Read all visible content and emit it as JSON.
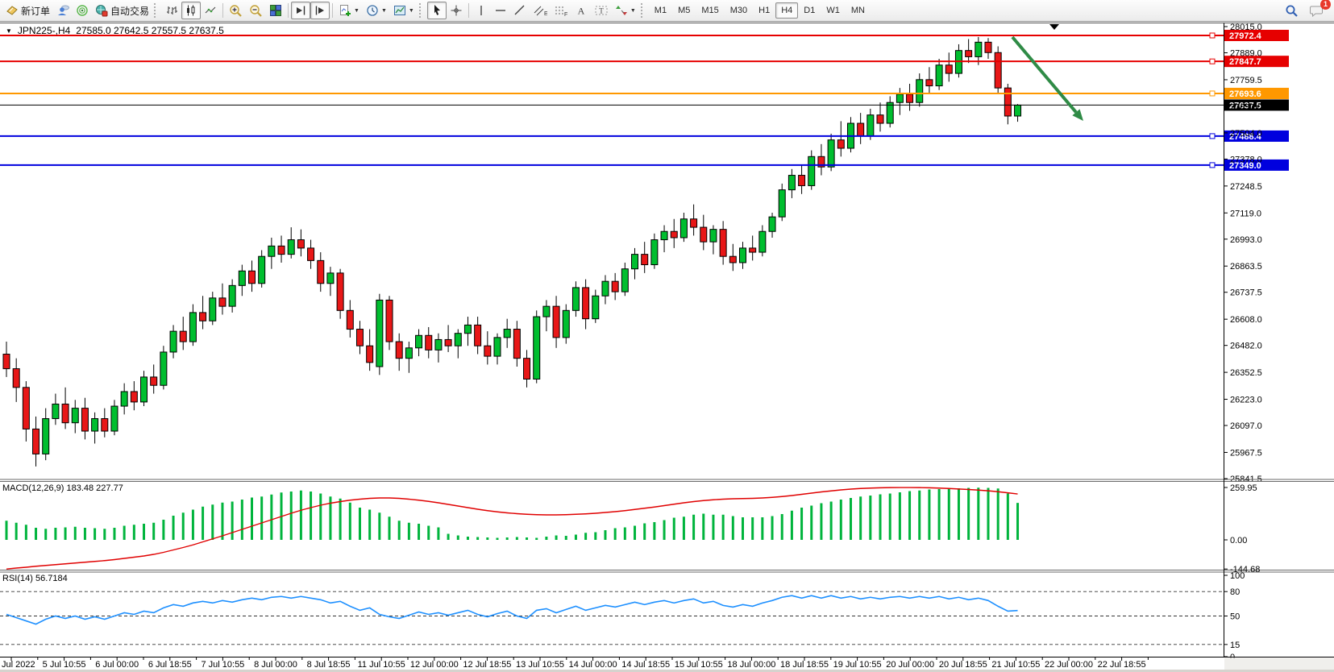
{
  "toolbar": {
    "new_order_label": "新订单",
    "autotrade_label": "自动交易",
    "timeframes": [
      "M1",
      "M5",
      "M15",
      "M30",
      "H1",
      "H4",
      "D1",
      "W1",
      "MN"
    ],
    "active_timeframe": "H4",
    "notification_badge": "1"
  },
  "chart_header": {
    "symbol": "JPN225-,H4",
    "ohlc": "27585.0 27642.5 27557.5 27637.5"
  },
  "indicators": {
    "macd_label": "MACD(12,26,9) 183.48 227.77",
    "rsi_label": "RSI(14) 56.7184"
  },
  "colors": {
    "candle_up": "#00be2f",
    "candle_down": "#e81717",
    "macd_hist": "#00b43c",
    "macd_signal": "#e00000",
    "rsi_line": "#1e90ff",
    "hline_red": "#e60000",
    "hline_orange": "#ff9800",
    "hline_blue": "#0000de",
    "hline_black": "#000000",
    "arrow_green": "#2f8b46"
  },
  "chart_data": {
    "type": "candlestick",
    "symbol": "JPN225-",
    "timeframe": "H4",
    "ylim_main": [
      25841.5,
      28015.0
    ],
    "price_ticks": [
      "28015.0",
      "27889.0",
      "27759.5",
      "27630.0",
      "27504.0",
      "27378.0",
      "27248.5",
      "27119.0",
      "26993.0",
      "26863.5",
      "26737.5",
      "26608.0",
      "26482.0",
      "26352.5",
      "26223.0",
      "26097.0",
      "25967.5",
      "25841.5"
    ],
    "hlines": [
      {
        "value": 27972.4,
        "label": "27972.4",
        "color": "#e60000",
        "kind": "resistance"
      },
      {
        "value": 27847.7,
        "label": "27847.7",
        "color": "#e60000",
        "kind": "resistance"
      },
      {
        "value": 27693.6,
        "label": "27693.6",
        "color": "#ff9800",
        "kind": "level"
      },
      {
        "value": 27637.5,
        "label": "27637.5",
        "color": "#000000",
        "kind": "current"
      },
      {
        "value": 27488.4,
        "label": "27488.4",
        "color": "#0000de",
        "kind": "support"
      },
      {
        "value": 27349.0,
        "label": "27349.0",
        "color": "#0000de",
        "kind": "support"
      }
    ],
    "candles": [
      [
        26440,
        26500,
        26330,
        26370
      ],
      [
        26370,
        26420,
        26210,
        26280
      ],
      [
        26280,
        26310,
        26020,
        26080
      ],
      [
        26080,
        26140,
        25900,
        25960
      ],
      [
        25960,
        26180,
        25930,
        26130
      ],
      [
        26130,
        26250,
        26100,
        26200
      ],
      [
        26200,
        26280,
        26080,
        26110
      ],
      [
        26110,
        26220,
        26060,
        26180
      ],
      [
        26180,
        26230,
        26030,
        26070
      ],
      [
        26070,
        26160,
        26010,
        26130
      ],
      [
        26130,
        26180,
        26040,
        26070
      ],
      [
        26070,
        26220,
        26050,
        26190
      ],
      [
        26190,
        26300,
        26150,
        26260
      ],
      [
        26260,
        26310,
        26170,
        26210
      ],
      [
        26210,
        26360,
        26190,
        26330
      ],
      [
        26330,
        26390,
        26250,
        26290
      ],
      [
        26290,
        26480,
        26270,
        26450
      ],
      [
        26450,
        26580,
        26420,
        26550
      ],
      [
        26550,
        26620,
        26460,
        26500
      ],
      [
        26500,
        26680,
        26480,
        26640
      ],
      [
        26640,
        26720,
        26560,
        26600
      ],
      [
        26600,
        26740,
        26580,
        26710
      ],
      [
        26710,
        26780,
        26630,
        26670
      ],
      [
        26670,
        26800,
        26640,
        26770
      ],
      [
        26770,
        26870,
        26720,
        26840
      ],
      [
        26840,
        26890,
        26740,
        26780
      ],
      [
        26780,
        26940,
        26760,
        26910
      ],
      [
        26910,
        27000,
        26850,
        26960
      ],
      [
        26960,
        27010,
        26880,
        26920
      ],
      [
        26920,
        27050,
        26900,
        26990
      ],
      [
        26990,
        27040,
        26910,
        26950
      ],
      [
        26950,
        26990,
        26850,
        26890
      ],
      [
        26890,
        26930,
        26740,
        26780
      ],
      [
        26780,
        26860,
        26720,
        26830
      ],
      [
        26830,
        26850,
        26610,
        26650
      ],
      [
        26650,
        26700,
        26520,
        26560
      ],
      [
        26560,
        26600,
        26440,
        26480
      ],
      [
        26480,
        26560,
        26360,
        26400
      ],
      [
        26380,
        26730,
        26340,
        26700
      ],
      [
        26700,
        26720,
        26460,
        26500
      ],
      [
        26500,
        26540,
        26360,
        26420
      ],
      [
        26420,
        26500,
        26350,
        26470
      ],
      [
        26470,
        26560,
        26430,
        26530
      ],
      [
        26530,
        26570,
        26420,
        26460
      ],
      [
        26460,
        26540,
        26400,
        26510
      ],
      [
        26510,
        26580,
        26450,
        26480
      ],
      [
        26480,
        26560,
        26420,
        26540
      ],
      [
        26540,
        26620,
        26480,
        26580
      ],
      [
        26580,
        26620,
        26440,
        26480
      ],
      [
        26480,
        26550,
        26390,
        26430
      ],
      [
        26430,
        26540,
        26390,
        26520
      ],
      [
        26520,
        26610,
        26470,
        26560
      ],
      [
        26560,
        26600,
        26380,
        26420
      ],
      [
        26420,
        26460,
        26280,
        26320
      ],
      [
        26320,
        26650,
        26300,
        26620
      ],
      [
        26620,
        26700,
        26550,
        26670
      ],
      [
        26670,
        26720,
        26470,
        26520
      ],
      [
        26520,
        26680,
        26490,
        26650
      ],
      [
        26650,
        26790,
        26620,
        26760
      ],
      [
        26760,
        26800,
        26560,
        26610
      ],
      [
        26610,
        26750,
        26590,
        26720
      ],
      [
        26720,
        26820,
        26680,
        26790
      ],
      [
        26790,
        26830,
        26700,
        26740
      ],
      [
        26740,
        26880,
        26720,
        26850
      ],
      [
        26850,
        26950,
        26800,
        26920
      ],
      [
        26920,
        26980,
        26830,
        26870
      ],
      [
        26870,
        27020,
        26850,
        26990
      ],
      [
        26990,
        27060,
        26930,
        27030
      ],
      [
        27030,
        27090,
        26950,
        27000
      ],
      [
        27000,
        27120,
        26980,
        27090
      ],
      [
        27090,
        27160,
        27010,
        27050
      ],
      [
        27050,
        27110,
        26940,
        26980
      ],
      [
        26980,
        27060,
        26920,
        27040
      ],
      [
        27040,
        27080,
        26870,
        26910
      ],
      [
        26910,
        26970,
        26840,
        26880
      ],
      [
        26880,
        26980,
        26850,
        26950
      ],
      [
        26950,
        27010,
        26890,
        26930
      ],
      [
        26930,
        27060,
        26910,
        27030
      ],
      [
        27030,
        27120,
        27000,
        27100
      ],
      [
        27100,
        27260,
        27080,
        27230
      ],
      [
        27230,
        27330,
        27190,
        27300
      ],
      [
        27300,
        27350,
        27210,
        27250
      ],
      [
        27250,
        27420,
        27230,
        27390
      ],
      [
        27390,
        27450,
        27300,
        27340
      ],
      [
        27340,
        27500,
        27320,
        27470
      ],
      [
        27470,
        27560,
        27390,
        27430
      ],
      [
        27430,
        27580,
        27410,
        27550
      ],
      [
        27550,
        27600,
        27450,
        27490
      ],
      [
        27490,
        27620,
        27470,
        27590
      ],
      [
        27590,
        27650,
        27510,
        27550
      ],
      [
        27550,
        27680,
        27530,
        27650
      ],
      [
        27650,
        27720,
        27590,
        27690
      ],
      [
        27690,
        27740,
        27610,
        27650
      ],
      [
        27650,
        27790,
        27630,
        27760
      ],
      [
        27760,
        27820,
        27690,
        27730
      ],
      [
        27730,
        27860,
        27710,
        27830
      ],
      [
        27830,
        27890,
        27750,
        27790
      ],
      [
        27790,
        27930,
        27770,
        27900
      ],
      [
        27900,
        27955,
        27840,
        27870
      ],
      [
        27870,
        27965,
        27830,
        27940
      ],
      [
        27940,
        27960,
        27860,
        27890
      ],
      [
        27890,
        27920,
        27690,
        27720
      ],
      [
        27720,
        27740,
        27545,
        27585
      ],
      [
        27585,
        27642.5,
        27557.5,
        27637.5
      ]
    ],
    "macd": {
      "params": "12,26,9",
      "last_main": 183.48,
      "last_signal": 227.77,
      "ticks": [
        {
          "v": 259.95,
          "label": "259.95"
        },
        {
          "v": 0,
          "label": "0.00"
        },
        {
          "v": -144.68,
          "label": "-144.68"
        }
      ],
      "hist": [
        95,
        85,
        75,
        60,
        55,
        60,
        62,
        65,
        60,
        58,
        55,
        60,
        70,
        75,
        80,
        85,
        100,
        120,
        135,
        150,
        165,
        175,
        185,
        190,
        200,
        210,
        215,
        225,
        235,
        240,
        245,
        240,
        230,
        215,
        205,
        185,
        160,
        150,
        135,
        115,
        95,
        85,
        80,
        70,
        62,
        30,
        22,
        16,
        14,
        12,
        10,
        12,
        14,
        12,
        10,
        16,
        22,
        20,
        26,
        35,
        38,
        48,
        58,
        62,
        70,
        82,
        88,
        98,
        110,
        115,
        125,
        130,
        125,
        125,
        118,
        112,
        112,
        112,
        118,
        128,
        145,
        160,
        170,
        182,
        190,
        200,
        208,
        215,
        220,
        226,
        230,
        236,
        242,
        245,
        250,
        252,
        255,
        256,
        258,
        259,
        258,
        255,
        230,
        183.48
      ],
      "signal": [
        -144.68,
        -140,
        -136,
        -131,
        -127,
        -123,
        -119,
        -115,
        -111,
        -107,
        -103,
        -98,
        -92,
        -86,
        -80,
        -72,
        -62,
        -50,
        -38,
        -25,
        -10,
        5,
        20,
        36,
        52,
        68,
        84,
        100,
        116,
        132,
        147,
        160,
        172,
        182,
        190,
        197,
        202,
        206,
        208,
        208,
        206,
        202,
        197,
        191,
        184,
        176,
        168,
        160,
        152,
        145,
        139,
        134,
        130,
        127,
        125,
        124,
        124,
        125,
        127,
        129,
        132,
        136,
        140,
        145,
        151,
        157,
        163,
        170,
        177,
        184,
        190,
        195,
        199,
        202,
        204,
        205,
        206,
        208,
        211,
        215,
        220,
        226,
        232,
        238,
        243,
        248,
        252,
        255,
        257,
        258.5,
        259.5,
        259.95,
        259.9,
        259.5,
        258.5,
        257,
        255,
        252.5,
        250,
        247,
        243.5,
        239,
        233.5,
        227.77
      ]
    },
    "rsi": {
      "period": "14",
      "last_value": 56.7184,
      "ticks": [
        {
          "v": 100,
          "label": "100"
        },
        {
          "v": 80,
          "label": "80"
        },
        {
          "v": 50,
          "label": "50"
        },
        {
          "v": 15,
          "label": "15"
        },
        {
          "v": 0,
          "label": "0"
        }
      ],
      "dashed_levels": [
        80,
        50,
        15
      ],
      "values": [
        52,
        48,
        44,
        40,
        46,
        50,
        47,
        50,
        46,
        49,
        46,
        50,
        54,
        52,
        56,
        54,
        60,
        64,
        62,
        66,
        68,
        66,
        69,
        67,
        70,
        72,
        70,
        73,
        74,
        72,
        74,
        72,
        70,
        66,
        68,
        62,
        57,
        60,
        52,
        49,
        47,
        51,
        55,
        52,
        54,
        51,
        54,
        57,
        52,
        49,
        53,
        56,
        50,
        47,
        57,
        59,
        54,
        58,
        62,
        57,
        60,
        63,
        61,
        64,
        67,
        64,
        67,
        69,
        66,
        69,
        71,
        66,
        68,
        63,
        61,
        64,
        62,
        66,
        69,
        73,
        75,
        72,
        75,
        72,
        75,
        72,
        74,
        71,
        73,
        71,
        73,
        74,
        72,
        74,
        72,
        74,
        71,
        73,
        70,
        72,
        69,
        62,
        56,
        56.72
      ]
    },
    "time_axis": [
      "Jul 2022",
      "5 Jul 10:55",
      "6 Jul 00:00",
      "6 Jul 18:55",
      "7 Jul 10:55",
      "8 Jul 00:00",
      "8 Jul 18:55",
      "11 Jul 10:55",
      "12 Jul 00:00",
      "12 Jul 18:55",
      "13 Jul 10:55",
      "14 Jul 00:00",
      "14 Jul 18:55",
      "15 Jul 10:55",
      "18 Jul 00:00",
      "18 Jul 18:55",
      "19 Jul 10:55",
      "20 Jul 00:00",
      "20 Jul 18:55",
      "21 Jul 10:55",
      "22 Jul 00:00",
      "22 Jul 18:55"
    ],
    "annotation_arrow": {
      "from": [
        1256,
        46
      ],
      "to": [
        1344,
        150
      ],
      "color": "#2f8b46"
    }
  }
}
